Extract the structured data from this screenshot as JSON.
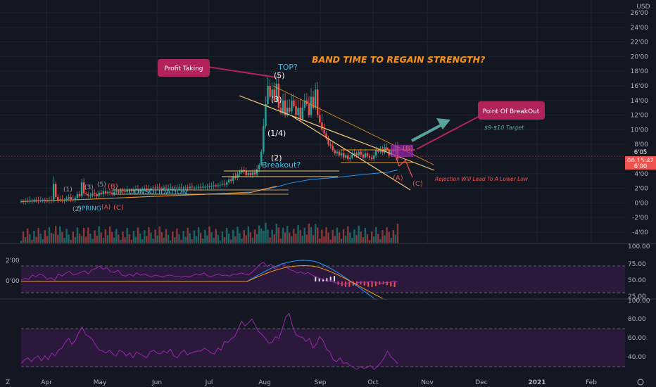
{
  "header": {
    "currency": "USD"
  },
  "chart_data": {
    "type": "candlestick",
    "price_axis": {
      "ylim": [
        -5.5,
        27
      ],
      "ticks": [
        -4,
        -2,
        0,
        2,
        4,
        6,
        8,
        10,
        12,
        14,
        16,
        18,
        20,
        22,
        24,
        26
      ],
      "labels": [
        "-4'00",
        "-2'00",
        "0'00",
        "2'00",
        "4'00",
        "6'00",
        "8'00",
        "10'00",
        "12'00",
        "14'00",
        "16'00",
        "18'00",
        "20'00",
        "22'00",
        "24'00",
        "26'00"
      ]
    },
    "time_axis": {
      "labels": [
        "Apr",
        "May",
        "Jun",
        "Jul",
        "Aug",
        "Sep",
        "Oct",
        "Nov",
        "Dec",
        "2021",
        "Feb"
      ],
      "bold_labels": [
        "2021"
      ]
    },
    "price_labels": [
      {
        "text": "6'05",
        "color": "#26a69a"
      },
      {
        "text": "06:15:42",
        "color": "#26a69a"
      },
      {
        "text": "6'00",
        "color": "#ef5350"
      }
    ],
    "closes": [
      0.2,
      0.15,
      0.25,
      0.2,
      0.3,
      0.25,
      0.4,
      0.35,
      0.3,
      0.3,
      0.4,
      0.3,
      0.25,
      0.35,
      0.3,
      2.6,
      0.8,
      0.4,
      0.5,
      0.3,
      0.4,
      0.6,
      0.8,
      0.5,
      0.4,
      0.7,
      1.2,
      0.9,
      2.8,
      1.3,
      1.2,
      1.0,
      1.0,
      1.3,
      1.2,
      0.9,
      1.4,
      1.2,
      1.6,
      1.3,
      1.5,
      1.4,
      1.2,
      1.5,
      1.6,
      1.4,
      1.7,
      1.6,
      1.5,
      1.8,
      1.7,
      1.6,
      1.8,
      1.9,
      1.7,
      1.8,
      1.9,
      2.0,
      1.9,
      1.8,
      2.0,
      2.1,
      2.0,
      2.1,
      2.0,
      1.9,
      2.1,
      2.0,
      2.0,
      2.1,
      2.0,
      2.1,
      2.0,
      2.1,
      2.0,
      2.1,
      2.1,
      2.0,
      2.2,
      2.1,
      2.1,
      2.1,
      2.2,
      2.1,
      2.2,
      2.2,
      2.3,
      2.2,
      2.3,
      2.4,
      2.3,
      2.4,
      2.5,
      2.6,
      2.5,
      2.8,
      3.2,
      3.0,
      3.6,
      3.4,
      4.0,
      4.2,
      4.5,
      4.3,
      3.8,
      4.1,
      3.8,
      4.2,
      3.9,
      4.6,
      5.2,
      7.0,
      10.5,
      13.5,
      16.0,
      14.5,
      15.5,
      14.0,
      16.3,
      13.0,
      12.3,
      14.0,
      12.0,
      13.0,
      12.5,
      14.0,
      13.2,
      12.0,
      13.0,
      11.5,
      13.0,
      14.0,
      13.5,
      12.0,
      14.5,
      13.0,
      15.5,
      12.0,
      11.0,
      10.0,
      9.5,
      8.8,
      8.0,
      7.8,
      7.2,
      6.8,
      7.0,
      6.5,
      6.8,
      6.2,
      6.5,
      6.0,
      6.2,
      6.6,
      6.8,
      6.5,
      7.0,
      6.6,
      6.2,
      6.8,
      6.4,
      6.2,
      6.0,
      6.5,
      7.2,
      7.0,
      7.4,
      6.9,
      7.6,
      7.3,
      6.5,
      7.2,
      7.0,
      7.8,
      6.05
    ],
    "ma_long": [
      [
        0,
        0.2
      ],
      [
        100,
        0.5
      ],
      [
        200,
        0.9
      ],
      [
        300,
        1.3
      ],
      [
        345,
        1.5
      ],
      [
        380,
        2.2
      ],
      [
        400,
        2.7
      ],
      [
        430,
        3.2
      ],
      [
        470,
        3.5
      ],
      [
        510,
        3.9
      ],
      [
        545,
        4.2
      ],
      [
        560,
        4.5
      ]
    ],
    "ma_short": [
      [
        0,
        0.2
      ],
      [
        100,
        0.5
      ],
      [
        200,
        0.9
      ],
      [
        280,
        1.2
      ],
      [
        340,
        1.4
      ],
      [
        380,
        2.3
      ]
    ],
    "macd_axis": {
      "labels": [
        "2'00",
        "0'00"
      ]
    },
    "rsi_axis": {
      "labels": [
        "100.00",
        "75.00",
        "50.00",
        "25.00"
      ]
    },
    "stoch_axis": {
      "labels": [
        "100.00",
        "80.00",
        "60.00",
        "40.00"
      ]
    },
    "rsi_line": [
      48,
      52,
      50,
      58,
      55,
      60,
      57,
      50,
      53,
      48,
      60,
      56,
      62,
      65,
      58,
      60,
      63,
      66,
      60,
      68,
      70,
      75,
      69,
      72,
      64,
      63,
      67,
      58,
      56,
      60,
      56,
      62,
      58,
      60,
      57,
      55,
      58,
      56,
      55,
      57,
      58,
      56,
      55,
      54,
      56,
      55,
      57,
      60,
      58,
      62,
      57,
      55,
      58,
      60,
      57,
      58,
      56,
      60,
      59,
      62,
      60,
      58,
      64,
      70,
      78,
      82,
      74,
      78,
      70,
      74,
      80,
      76,
      68,
      66,
      62,
      64,
      60,
      63,
      58,
      55,
      52,
      50,
      46,
      48,
      44,
      43,
      42,
      40,
      45,
      44,
      42,
      46,
      44,
      45,
      46,
      44,
      43,
      42,
      45,
      44,
      46,
      45
    ],
    "stoch_line": [
      44,
      48,
      50,
      46,
      50,
      52,
      47,
      52,
      48,
      55,
      52,
      58,
      60,
      66,
      70,
      64,
      68,
      76,
      82,
      74,
      72,
      69,
      63,
      58,
      57,
      55,
      58,
      54,
      52,
      58,
      56,
      52,
      55,
      50,
      56,
      54,
      52,
      50,
      56,
      58,
      55,
      54,
      57,
      55,
      59,
      52,
      50,
      55,
      58,
      53,
      55,
      56,
      57,
      57,
      60,
      58,
      55,
      54,
      60,
      58,
      67,
      66,
      70,
      72,
      80,
      88,
      83,
      86,
      90,
      84,
      77,
      74,
      70,
      65,
      66,
      72,
      70,
      80,
      92,
      96,
      83,
      74,
      72,
      71,
      67,
      70,
      60,
      64,
      72,
      68,
      59,
      56,
      48,
      46,
      50,
      44,
      45,
      42,
      40,
      38,
      41,
      39,
      40,
      42,
      38,
      41,
      45,
      50,
      57,
      51,
      48,
      44
    ]
  },
  "annotations": {
    "band_title": "BAND TIME TO REGAIN STRENGTH?",
    "profit_taking": "Profit Taking",
    "breakout_point": "Point Of BreakOut",
    "target": "$9-$10 Target",
    "rejection": "Rejection Will Lead To A Lower Low",
    "top": "TOP?",
    "breakout": "Breakout?",
    "consolidation": "CONSOLIDATION",
    "spring": "SPRING",
    "wave5": "(5)",
    "wave3": "(3)",
    "wave14": "(1/4)",
    "wave2": "(2)",
    "waveA": "(A)",
    "waveC": "(C)",
    "waveB": "(B)",
    "waveB_right": "(B)",
    "left_wave1": "(1)",
    "left_wave2": "(2)",
    "left_wave3": "(3)",
    "left_wave5": "(5)",
    "left_waveA": "(A)",
    "left_waveC": "(C)",
    "left_waveB": "(B)"
  },
  "colors": {
    "background": "#131722",
    "up": "#26a69a",
    "down": "#ef5350",
    "orange": "#f7931a",
    "purple": "#9c27b0",
    "ribbon": "#b2235b",
    "annotation_blue": "#39c1e6"
  }
}
